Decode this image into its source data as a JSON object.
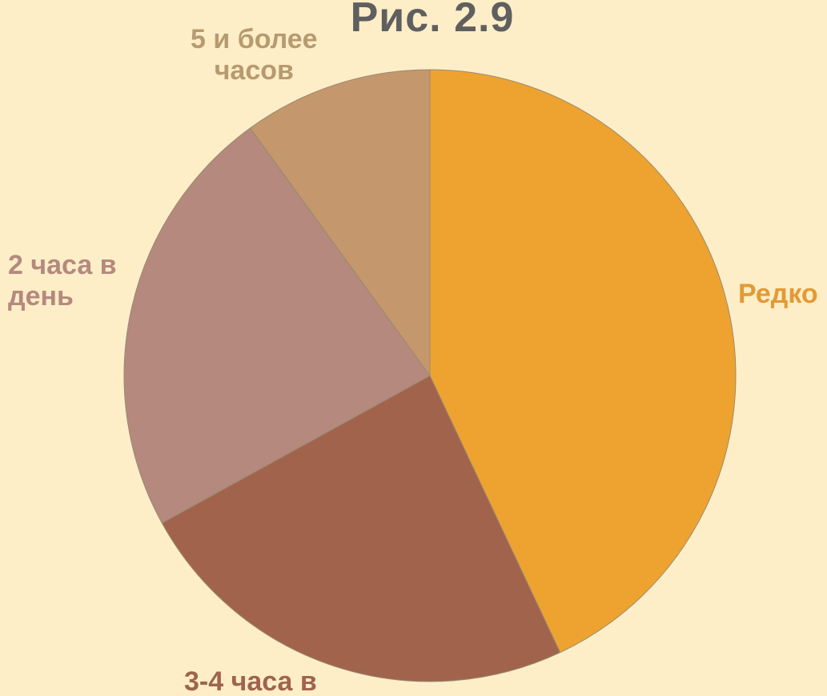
{
  "chart_data": {
    "type": "pie",
    "title": "Рис. 2.9",
    "slices": [
      {
        "name": "Редко",
        "value": 43,
        "color": "#eea330"
      },
      {
        "name": "3-4 часа в",
        "value": 24,
        "color": "#a2634c"
      },
      {
        "name": "2 часа в\nдень",
        "value": 23,
        "color": "#b5897d"
      },
      {
        "name": "5 и более\nчасов",
        "value": 10,
        "color": "#c4976c"
      }
    ],
    "start_angle_deg": 0,
    "direction": "clockwise",
    "legend": "none",
    "label_colors": [
      "#e39a35",
      "#a0634d",
      "#b5897d",
      "#b79a6f"
    ]
  }
}
